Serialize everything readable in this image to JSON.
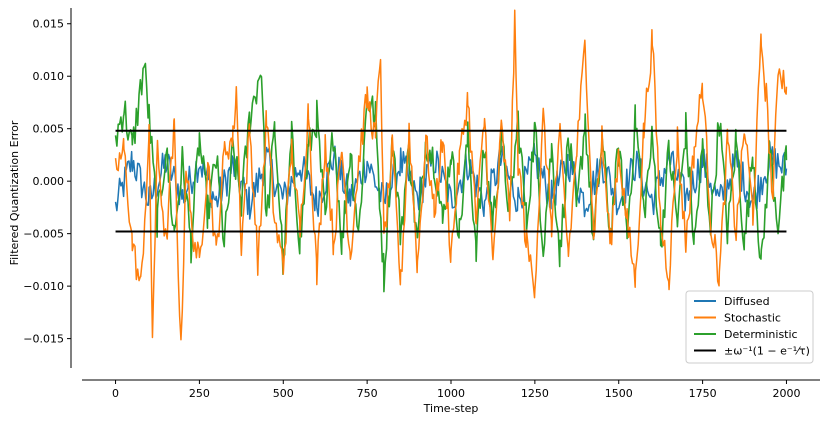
{
  "chart_data": {
    "type": "line",
    "xlabel": "Time-step",
    "ylabel": "Filtered Quantization Error",
    "xlim": [
      -100,
      2100
    ],
    "ylim": [
      -0.0178,
      0.0165
    ],
    "xticks": [
      0,
      250,
      500,
      750,
      1000,
      1250,
      1500,
      1750,
      2000
    ],
    "xtick_labels": [
      "0",
      "250",
      "500",
      "750",
      "1000",
      "1250",
      "1500",
      "1750",
      "2000"
    ],
    "yticks": [
      -0.015,
      -0.01,
      -0.005,
      0.0,
      0.005,
      0.01,
      0.015
    ],
    "ytick_labels": [
      "−0.015",
      "−0.010",
      "−0.005",
      "0.000",
      "0.005",
      "0.010",
      "0.015"
    ],
    "grid": false,
    "legend_position": "bottom-right",
    "x_range": [
      0,
      2000
    ],
    "series": [
      {
        "name": "Diffused",
        "color": "#1f77b4",
        "x": [
          0,
          50,
          100,
          150,
          200,
          250,
          300,
          350,
          400,
          450,
          500,
          550,
          600,
          650,
          700,
          750,
          800,
          850,
          900,
          950,
          1000,
          1050,
          1100,
          1150,
          1200,
          1250,
          1300,
          1350,
          1400,
          1450,
          1500,
          1550,
          1600,
          1650,
          1700,
          1750,
          1800,
          1850,
          1900,
          1950,
          2000
        ],
        "y": [
          -0.0025,
          0.002,
          -0.002,
          0.0018,
          -0.0015,
          0.002,
          -0.002,
          0.0015,
          -0.0022,
          0.0021,
          -0.0018,
          0.0016,
          -0.002,
          0.0022,
          -0.0017,
          0.0019,
          -0.0021,
          0.0018,
          -0.0016,
          0.0021,
          -0.0019,
          0.0017,
          -0.0022,
          0.002,
          -0.0018,
          0.0021,
          -0.0016,
          0.0019,
          -0.0021,
          0.0018,
          -0.002,
          0.0017,
          -0.0019,
          0.0022,
          -0.0017,
          0.002,
          -0.0021,
          0.0018,
          -0.0019,
          0.0021,
          0.0012
        ]
      },
      {
        "name": "Stochastic",
        "color": "#ff7f0e",
        "x": [
          0,
          25,
          50,
          75,
          100,
          110,
          125,
          150,
          175,
          195,
          210,
          225,
          250,
          275,
          300,
          325,
          350,
          360,
          375,
          400,
          425,
          450,
          475,
          500,
          525,
          550,
          575,
          600,
          625,
          650,
          675,
          700,
          725,
          750,
          775,
          790,
          800,
          825,
          850,
          875,
          900,
          925,
          950,
          975,
          1000,
          1025,
          1050,
          1075,
          1100,
          1125,
          1150,
          1175,
          1190,
          1200,
          1225,
          1250,
          1275,
          1300,
          1325,
          1350,
          1375,
          1400,
          1425,
          1450,
          1475,
          1500,
          1525,
          1550,
          1575,
          1600,
          1625,
          1650,
          1675,
          1700,
          1725,
          1750,
          1775,
          1800,
          1825,
          1850,
          1875,
          1900,
          1925,
          1940,
          1960,
          1975,
          2000
        ],
        "y": [
          0.001,
          0.003,
          -0.006,
          -0.0102,
          0.004,
          -0.0143,
          0.003,
          -0.006,
          0.005,
          -0.0165,
          0.002,
          -0.004,
          -0.008,
          0.002,
          -0.007,
          0.003,
          0.004,
          0.009,
          -0.006,
          0.005,
          -0.008,
          0.006,
          -0.004,
          -0.008,
          0.003,
          -0.005,
          0.007,
          -0.009,
          0.004,
          -0.006,
          0.003,
          -0.007,
          0.002,
          0.008,
          0.004,
          0.0125,
          -0.006,
          0.003,
          -0.0098,
          0.005,
          -0.008,
          0.004,
          -0.003,
          0.004,
          -0.007,
          0.002,
          0.008,
          -0.004,
          0.006,
          -0.008,
          0.005,
          -0.003,
          0.0148,
          0.002,
          -0.006,
          -0.0098,
          0.006,
          -0.004,
          0.004,
          -0.007,
          0.003,
          0.0132,
          -0.005,
          0.004,
          -0.006,
          0.003,
          -0.004,
          -0.0095,
          0.005,
          0.0135,
          -0.004,
          -0.009,
          0.004,
          -0.006,
          0.003,
          0.0093,
          -0.004,
          -0.0092,
          0.004,
          -0.005,
          0.005,
          -0.003,
          0.0133,
          0.008,
          -0.002,
          0.0112,
          0.009
        ]
      },
      {
        "name": "Deterministic",
        "color": "#2ca02c",
        "x": [
          0,
          25,
          50,
          85,
          100,
          125,
          150,
          175,
          200,
          225,
          250,
          275,
          300,
          325,
          350,
          375,
          400,
          435,
          450,
          475,
          500,
          525,
          550,
          575,
          600,
          625,
          650,
          675,
          700,
          725,
          750,
          775,
          800,
          825,
          850,
          875,
          900,
          925,
          950,
          975,
          1000,
          1025,
          1050,
          1075,
          1100,
          1125,
          1150,
          1175,
          1200,
          1225,
          1250,
          1275,
          1300,
          1325,
          1350,
          1375,
          1400,
          1425,
          1450,
          1475,
          1500,
          1525,
          1550,
          1575,
          1600,
          1625,
          1650,
          1675,
          1700,
          1725,
          1750,
          1775,
          1800,
          1825,
          1850,
          1875,
          1900,
          1925,
          1950,
          1975,
          2000
        ],
        "y": [
          0.004,
          0.007,
          0.003,
          0.0112,
          0.006,
          -0.004,
          0.003,
          -0.005,
          0.002,
          -0.006,
          0.004,
          -0.003,
          0.002,
          -0.006,
          0.003,
          -0.002,
          0.006,
          0.011,
          -0.004,
          0.005,
          -0.008,
          0.004,
          -0.006,
          0.003,
          0.006,
          -0.004,
          0.005,
          -0.006,
          0.003,
          -0.005,
          0.008,
          0.006,
          -0.009,
          0.004,
          -0.005,
          0.003,
          -0.006,
          0.004,
          0.002,
          -0.004,
          0.003,
          -0.005,
          0.004,
          -0.006,
          0.003,
          -0.004,
          0.004,
          -0.003,
          0.006,
          -0.004,
          0.005,
          -0.006,
          0.003,
          -0.007,
          0.004,
          -0.003,
          0.006,
          -0.006,
          0.004,
          -0.005,
          0.003,
          -0.005,
          0.006,
          -0.003,
          0.004,
          -0.006,
          0.003,
          -0.004,
          0.005,
          -0.006,
          0.003,
          -0.004,
          0.006,
          -0.005,
          0.004,
          -0.006,
          0.003,
          -0.0082,
          0.003,
          -0.004,
          0.002
        ]
      },
      {
        "name": "±ω⁻¹(1 − e⁻¹⁄τ)",
        "color": "#000000",
        "x": [
          0,
          2000
        ],
        "y_pos": [
          0.0048,
          0.0048
        ],
        "y_neg": [
          -0.0048,
          -0.0048
        ]
      }
    ]
  }
}
